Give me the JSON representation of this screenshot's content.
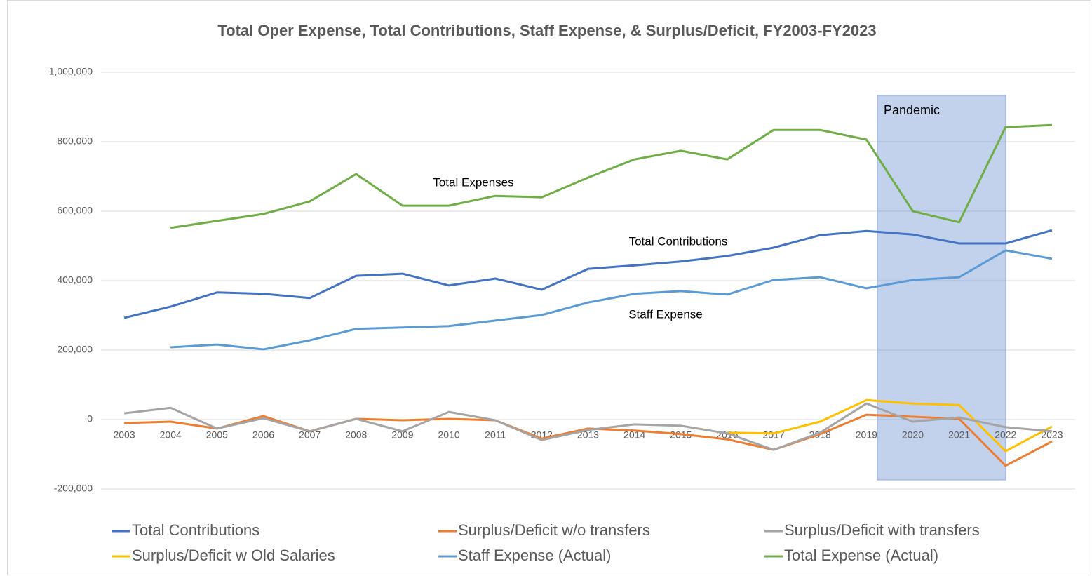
{
  "chart_data": {
    "type": "line",
    "title": "Total Oper Expense, Total Contributions, Staff Expense, & Surplus/Deficit, FY2003-FY2023",
    "categories": [
      "2003",
      "2004",
      "2005",
      "2006",
      "2007",
      "2008",
      "2009",
      "2010",
      "2011",
      "2012",
      "2013",
      "2014",
      "2015",
      "2016",
      "2017",
      "2018",
      "2019",
      "2020",
      "2021",
      "2022",
      "2023"
    ],
    "series": [
      {
        "name": "Total Contributions",
        "color": "#4472c4",
        "values": [
          293000,
          325000,
          366000,
          362000,
          350000,
          414000,
          420000,
          386000,
          406000,
          374000,
          434000,
          444000,
          455000,
          471000,
          495000,
          531000,
          543000,
          533000,
          507000,
          507000,
          545000
        ]
      },
      {
        "name": "Surplus/Deficit w/o transfers",
        "color": "#ed7d31",
        "values": [
          -10000,
          -6000,
          -26000,
          10000,
          -34000,
          2000,
          -2000,
          2000,
          -2000,
          -55000,
          -26000,
          -32000,
          -42000,
          -57000,
          -87000,
          -42000,
          14000,
          8000,
          2000,
          -133000,
          -63000
        ]
      },
      {
        "name": "Surplus/Deficit with transfers",
        "color": "#a5a5a5",
        "values": [
          18000,
          34000,
          -26000,
          4000,
          -34000,
          2000,
          -34000,
          22000,
          -2000,
          -59000,
          -30000,
          -14000,
          -18000,
          -40000,
          -87000,
          -38000,
          46000,
          -6000,
          6000,
          -22000,
          -34000
        ]
      },
      {
        "name": "Surplus/Deficit w Old Salaries",
        "color": "#ffc000",
        "values": [
          null,
          null,
          null,
          null,
          null,
          null,
          null,
          null,
          null,
          null,
          null,
          null,
          null,
          -38000,
          -40000,
          -6000,
          56000,
          46000,
          42000,
          -91000,
          -20000
        ]
      },
      {
        "name": "Staff Expense (Actual)",
        "color": "#5b9bd5",
        "values": [
          null,
          208000,
          216000,
          202000,
          228000,
          261000,
          265000,
          269000,
          285000,
          301000,
          337000,
          362000,
          370000,
          360000,
          402000,
          410000,
          378000,
          402000,
          410000,
          487000,
          463000
        ]
      },
      {
        "name": "Total Expense (Actual)",
        "color": "#70ad47",
        "values": [
          null,
          552000,
          572000,
          592000,
          628000,
          707000,
          616000,
          616000,
          644000,
          640000,
          697000,
          749000,
          774000,
          749000,
          834000,
          834000,
          806000,
          600000,
          568000,
          842000,
          848000
        ]
      }
    ],
    "ylim": [
      -200000,
      1000000
    ],
    "yticks": [
      {
        "value": -200000,
        "label": "-200,000"
      },
      0,
      {
        "value": 200000,
        "label": "200,000"
      },
      {
        "value": 400000,
        "label": "400,000"
      },
      {
        "value": 600000,
        "label": "600,000"
      },
      {
        "value": 800000,
        "label": "800,000"
      },
      {
        "value": 1000000,
        "label": "1,000,000"
      }
    ],
    "grid": true,
    "legend": "bottom",
    "annotations": [
      "Total Expenses",
      "Total Contributions",
      "Staff Expense",
      "Pandemic"
    ]
  }
}
